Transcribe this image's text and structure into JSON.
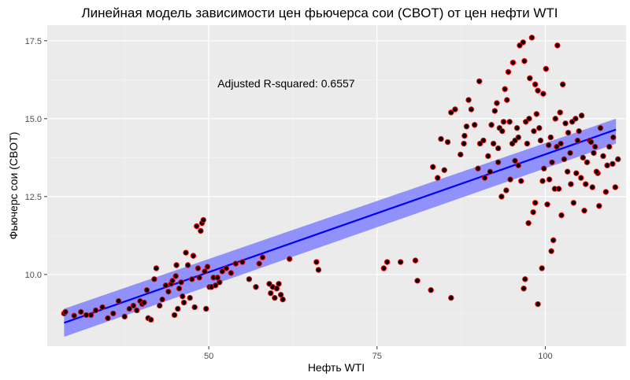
{
  "chart_data": {
    "type": "scatter",
    "title": "Линейная модель зависимости цен фьючерса сои (CBOT) от цен нефти WTI",
    "xlabel": "Нефть WTI",
    "ylabel": "Фьючерс сои (CBOT)",
    "xlim": [
      26,
      112
    ],
    "ylim": [
      7.7,
      18.0
    ],
    "x_ticks": [
      50,
      75,
      100
    ],
    "x_tick_labels": [
      "50",
      "75",
      "100"
    ],
    "y_ticks": [
      10.0,
      12.5,
      15.0,
      17.5
    ],
    "y_tick_labels": [
      "10.0",
      "12.5",
      "15.0",
      "17.5"
    ],
    "grid": true,
    "annotation": {
      "text": "Adjusted R-squared:  0.6557",
      "x": 61.5,
      "y": 16.0
    },
    "regression": {
      "x_start": 28.5,
      "y_start": 8.45,
      "x_end": 110.5,
      "y_end": 14.65,
      "ci_lower": [
        8.0,
        14.2
      ],
      "ci_upper": [
        8.9,
        15.0
      ],
      "line_color": "#0000ff",
      "band_color": "#7b7bff"
    },
    "colors": {
      "panel": "#ebebeb",
      "grid_major": "#ffffff",
      "point_fill": "#000000",
      "point_stroke": "#ff0000"
    },
    "points": [
      [
        28.5,
        8.75
      ],
      [
        28.7,
        8.8
      ],
      [
        30.0,
        8.68
      ],
      [
        31.0,
        8.8
      ],
      [
        31.8,
        8.7
      ],
      [
        32.5,
        8.7
      ],
      [
        33.2,
        8.85
      ],
      [
        34.2,
        8.95
      ],
      [
        35.0,
        8.6
      ],
      [
        35.8,
        8.75
      ],
      [
        36.6,
        9.15
      ],
      [
        37.5,
        8.65
      ],
      [
        38.2,
        8.9
      ],
      [
        38.8,
        9.0
      ],
      [
        39.3,
        8.85
      ],
      [
        39.8,
        9.15
      ],
      [
        40.1,
        9.05
      ],
      [
        40.4,
        9.1
      ],
      [
        40.8,
        9.5
      ],
      [
        41.0,
        8.6
      ],
      [
        41.4,
        8.55
      ],
      [
        41.9,
        9.85
      ],
      [
        42.2,
        10.2
      ],
      [
        42.7,
        9.0
      ],
      [
        43.1,
        9.2
      ],
      [
        43.6,
        9.65
      ],
      [
        44.0,
        9.45
      ],
      [
        44.4,
        9.7
      ],
      [
        44.6,
        9.8
      ],
      [
        44.9,
        8.7
      ],
      [
        45.1,
        9.95
      ],
      [
        45.2,
        10.3
      ],
      [
        45.4,
        8.9
      ],
      [
        45.6,
        9.55
      ],
      [
        45.9,
        9.75
      ],
      [
        46.1,
        9.3
      ],
      [
        46.3,
        9.1
      ],
      [
        46.6,
        10.7
      ],
      [
        46.9,
        10.3
      ],
      [
        47.2,
        9.25
      ],
      [
        47.5,
        9.85
      ],
      [
        47.7,
        10.6
      ],
      [
        47.9,
        8.95
      ],
      [
        48.2,
        11.55
      ],
      [
        48.4,
        10.2
      ],
      [
        48.6,
        9.9
      ],
      [
        48.8,
        11.4
      ],
      [
        49.0,
        11.65
      ],
      [
        49.2,
        11.75
      ],
      [
        49.4,
        10.1
      ],
      [
        49.6,
        8.9
      ],
      [
        49.8,
        10.25
      ],
      [
        50.1,
        9.6
      ],
      [
        50.4,
        9.6
      ],
      [
        50.7,
        9.9
      ],
      [
        51.0,
        9.65
      ],
      [
        51.3,
        9.9
      ],
      [
        51.6,
        9.75
      ],
      [
        52.0,
        10.1
      ],
      [
        52.6,
        10.2
      ],
      [
        53.3,
        10.05
      ],
      [
        54.0,
        10.35
      ],
      [
        55.0,
        10.4
      ],
      [
        56.0,
        9.85
      ],
      [
        57.0,
        9.6
      ],
      [
        57.5,
        10.35
      ],
      [
        58.0,
        10.55
      ],
      [
        59.0,
        9.7
      ],
      [
        59.2,
        9.4
      ],
      [
        59.5,
        9.6
      ],
      [
        59.8,
        9.25
      ],
      [
        60.1,
        9.55
      ],
      [
        60.4,
        9.7
      ],
      [
        60.7,
        9.35
      ],
      [
        61.0,
        9.2
      ],
      [
        62.0,
        10.5
      ],
      [
        66.0,
        10.4
      ],
      [
        66.3,
        10.15
      ],
      [
        76.0,
        10.2
      ],
      [
        76.5,
        10.4
      ],
      [
        78.5,
        10.4
      ],
      [
        80.7,
        10.45
      ],
      [
        81.0,
        9.8
      ],
      [
        83.0,
        9.5
      ],
      [
        86.0,
        9.25
      ],
      [
        88.0,
        14.45
      ],
      [
        90.0,
        13.4
      ],
      [
        90.8,
        14.3
      ],
      [
        91.5,
        13.8
      ],
      [
        92.0,
        14.8
      ],
      [
        92.5,
        15.25
      ],
      [
        93.0,
        13.6
      ],
      [
        93.2,
        14.7
      ],
      [
        93.6,
        14.6
      ],
      [
        94.0,
        15.95
      ],
      [
        94.3,
        15.6
      ],
      [
        94.7,
        14.9
      ],
      [
        95.1,
        14.2
      ],
      [
        95.5,
        14.3
      ],
      [
        96.0,
        14.4
      ],
      [
        96.4,
        13.0
      ],
      [
        96.9,
        16.85
      ],
      [
        97.3,
        14.2
      ],
      [
        97.7,
        16.3
      ],
      [
        98.0,
        17.6
      ],
      [
        98.5,
        16.1
      ],
      [
        98.9,
        15.9
      ],
      [
        99.3,
        14.3
      ],
      [
        99.7,
        15.8
      ],
      [
        100.1,
        16.6
      ],
      [
        100.5,
        14.15
      ],
      [
        101.0,
        13.6
      ],
      [
        101.4,
        12.75
      ],
      [
        101.8,
        17.35
      ],
      [
        102.2,
        15.2
      ],
      [
        102.6,
        16.1
      ],
      [
        103.0,
        14.85
      ],
      [
        103.4,
        14.55
      ],
      [
        103.8,
        12.9
      ],
      [
        104.2,
        12.3
      ],
      [
        104.6,
        13.25
      ],
      [
        105.0,
        14.6
      ],
      [
        105.4,
        15.1
      ],
      [
        105.8,
        12.05
      ],
      [
        106.2,
        13.6
      ],
      [
        106.6,
        14.3
      ],
      [
        107.0,
        12.8
      ],
      [
        107.4,
        14.1
      ],
      [
        107.8,
        13.25
      ],
      [
        108.2,
        14.7
      ],
      [
        108.6,
        13.8
      ],
      [
        109.0,
        12.65
      ],
      [
        109.5,
        14.1
      ],
      [
        110.0,
        13.55
      ],
      [
        110.4,
        12.8
      ],
      [
        110.8,
        13.7
      ],
      [
        97.5,
        11.65
      ],
      [
        98.2,
        12.0
      ],
      [
        98.5,
        12.3
      ],
      [
        97.0,
        9.85
      ],
      [
        96.8,
        9.55
      ],
      [
        98.9,
        9.05
      ],
      [
        99.5,
        10.2
      ],
      [
        100.9,
        10.75
      ],
      [
        101.2,
        11.1
      ],
      [
        102.0,
        12.75
      ],
      [
        102.4,
        11.9
      ],
      [
        100.3,
        12.25
      ],
      [
        99.8,
        13.4
      ],
      [
        100.6,
        13.05
      ],
      [
        96.0,
        13.5
      ],
      [
        95.5,
        13.65
      ],
      [
        94.8,
        13.05
      ],
      [
        94.2,
        12.7
      ],
      [
        93.5,
        12.5
      ],
      [
        93.0,
        14.05
      ],
      [
        92.3,
        14.2
      ],
      [
        91.8,
        13.3
      ],
      [
        91.0,
        13.1
      ],
      [
        90.3,
        14.2
      ],
      [
        89.5,
        14.8
      ],
      [
        89.0,
        15.3
      ],
      [
        88.6,
        15.6
      ],
      [
        88.3,
        14.75
      ],
      [
        87.9,
        14.2
      ],
      [
        87.4,
        13.85
      ],
      [
        86.6,
        15.3
      ],
      [
        86.0,
        15.2
      ],
      [
        85.5,
        14.25
      ],
      [
        85.0,
        13.35
      ],
      [
        84.5,
        14.35
      ],
      [
        84.0,
        13.1
      ],
      [
        83.3,
        13.45
      ],
      [
        96.7,
        17.45
      ],
      [
        97.6,
        15.0
      ],
      [
        98.7,
        15.15
      ],
      [
        99.1,
        14.7
      ],
      [
        100.8,
        14.4
      ],
      [
        101.7,
        14.1
      ],
      [
        102.8,
        13.7
      ],
      [
        103.3,
        13.3
      ],
      [
        104.0,
        14.9
      ],
      [
        104.5,
        15.0
      ],
      [
        105.3,
        13.1
      ],
      [
        106.0,
        12.9
      ],
      [
        107.2,
        13.9
      ],
      [
        108.0,
        12.2
      ],
      [
        109.2,
        13.5
      ],
      [
        110.1,
        14.4
      ],
      [
        95.2,
        16.8
      ],
      [
        96.2,
        17.35
      ],
      [
        94.5,
        16.5
      ],
      [
        90.2,
        16.2
      ],
      [
        92.8,
        15.5
      ],
      [
        93.8,
        14.9
      ],
      [
        95.8,
        14.7
      ],
      [
        97.1,
        14.9
      ],
      [
        98.3,
        14.6
      ],
      [
        99.6,
        13.0
      ],
      [
        101.5,
        15.0
      ],
      [
        102.3,
        14.2
      ],
      [
        103.7,
        13.9
      ],
      [
        104.8,
        14.3
      ],
      [
        105.6,
        13.75
      ],
      [
        106.8,
        14.25
      ],
      [
        107.6,
        13.3
      ]
    ]
  }
}
